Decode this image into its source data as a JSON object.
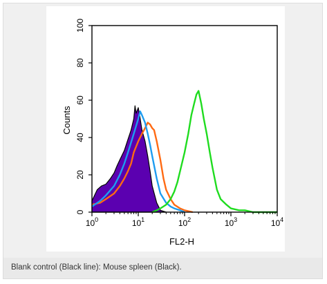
{
  "caption": "Blank control (Black line): Mouse spleen (Black).",
  "colors": {
    "blank_control": "#000000",
    "mouse_spleen": "#5b00b0",
    "orange_series": "#ff6a13",
    "blue_series": "#1e9cf0",
    "green_series": "#1fdc1f",
    "axis": "#000000"
  },
  "chart_data": {
    "type": "area",
    "xscale": "log",
    "xlabel": "FL2-H",
    "ylabel": "Counts",
    "xlim": [
      1,
      10000
    ],
    "ylim": [
      0,
      100
    ],
    "x_ticks": [
      {
        "base": "10",
        "exp": "0",
        "value": 1
      },
      {
        "base": "10",
        "exp": "1",
        "value": 10
      },
      {
        "base": "10",
        "exp": "2",
        "value": 100
      },
      {
        "base": "10",
        "exp": "3",
        "value": 1000
      },
      {
        "base": "10",
        "exp": "4",
        "value": 10000
      }
    ],
    "y_ticks": [
      "0",
      "20",
      "40",
      "60",
      "80",
      "100"
    ],
    "grid": false,
    "series": [
      {
        "key": "mouse_spleen",
        "style": "filled",
        "x": [
          1,
          1.3,
          1.6,
          2,
          2.5,
          3,
          3.5,
          4,
          5,
          6,
          7,
          8,
          8.5,
          9,
          10,
          11,
          12,
          14,
          16,
          18,
          20,
          25,
          30,
          40
        ],
        "y": [
          6,
          12,
          14,
          15,
          18,
          21,
          25,
          28,
          33,
          39,
          44,
          50,
          57,
          53,
          56,
          50,
          44,
          38,
          30,
          22,
          14,
          5,
          1,
          0
        ]
      },
      {
        "key": "orange_series",
        "style": "line",
        "x": [
          1,
          1.5,
          2,
          3,
          4,
          5,
          6,
          7,
          8,
          10,
          12,
          14,
          16,
          18,
          20,
          22,
          25,
          30,
          35,
          40,
          50,
          60,
          80,
          100,
          150
        ],
        "y": [
          4,
          5,
          7,
          10,
          14,
          18,
          22,
          26,
          32,
          38,
          42,
          45,
          48,
          47,
          45,
          44,
          38,
          28,
          18,
          12,
          7,
          4,
          2,
          1,
          0
        ]
      },
      {
        "key": "blue_series",
        "style": "line",
        "x": [
          1,
          1.5,
          2,
          3,
          4,
          5,
          6,
          8,
          10,
          11,
          12,
          14,
          16,
          18,
          20,
          25,
          30,
          40,
          50,
          60,
          80,
          100
        ],
        "y": [
          3,
          6,
          9,
          14,
          20,
          26,
          32,
          42,
          50,
          54,
          52,
          48,
          42,
          36,
          30,
          18,
          10,
          5,
          3,
          2,
          1,
          0
        ]
      },
      {
        "key": "green_series",
        "style": "line",
        "x": [
          20,
          25,
          30,
          40,
          50,
          60,
          70,
          80,
          100,
          120,
          140,
          160,
          180,
          200,
          230,
          260,
          300,
          350,
          400,
          500,
          600,
          800,
          1000,
          1500,
          2000,
          3000,
          5000,
          10000
        ],
        "y": [
          0,
          1,
          2,
          4,
          7,
          11,
          16,
          22,
          32,
          42,
          52,
          58,
          63,
          65,
          58,
          50,
          42,
          32,
          24,
          12,
          7,
          4,
          2,
          1,
          1,
          0,
          0,
          0
        ]
      }
    ]
  }
}
